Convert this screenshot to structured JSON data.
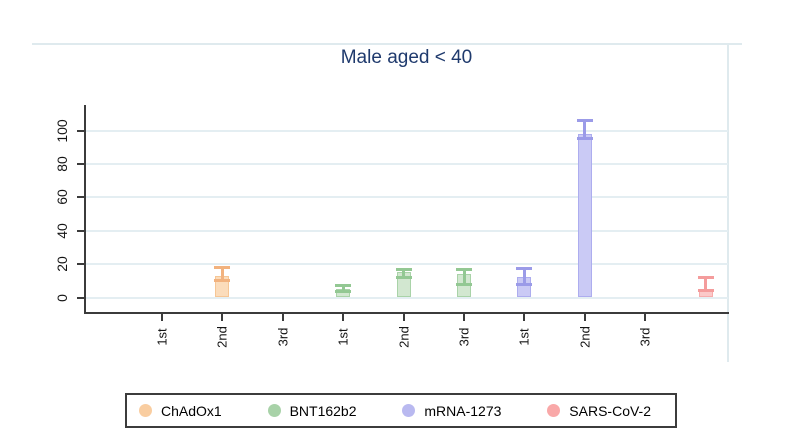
{
  "title": {
    "text": "Male aged < 40",
    "color": "#1f3a6d"
  },
  "panel": {
    "border_color": "#dfeaee",
    "axis_color": "#3b3b3b",
    "grid_color": "#e4eef2",
    "background": "#ffffff"
  },
  "chart_data": {
    "type": "bar",
    "title": "Male aged < 40",
    "xlabel": "",
    "ylabel": "",
    "ylim": [
      0,
      115
    ],
    "yticks": [
      0,
      20,
      40,
      60,
      80,
      100
    ],
    "grid": true,
    "legend_position": "bottom",
    "x_tick_labels": [
      "1st",
      "2nd",
      "3rd",
      "1st",
      "2nd",
      "3rd",
      "1st",
      "2nd",
      "3rd"
    ],
    "series": [
      {
        "name": "ChAdOx1",
        "color": "#F2B27E",
        "fill": "#FBDCBB",
        "edge": "#F6C695",
        "points": [
          {
            "dose": "1st",
            "value": null
          },
          {
            "dose": "2nd",
            "value": 13,
            "ci_low": 10,
            "ci_high": 18
          },
          {
            "dose": "3rd",
            "value": null
          }
        ]
      },
      {
        "name": "BNT162b2",
        "color": "#93C893",
        "fill": "#D2E7D0",
        "edge": "#A9D3A8",
        "points": [
          {
            "dose": "1st",
            "value": 5,
            "ci_low": 3.5,
            "ci_high": 7
          },
          {
            "dose": "2nd",
            "value": 15,
            "ci_low": 12,
            "ci_high": 16.5
          },
          {
            "dose": "3rd",
            "value": 14,
            "ci_low": 8,
            "ci_high": 17
          }
        ]
      },
      {
        "name": "mRNA-1273",
        "color": "#9B9BE8",
        "fill": "#CACAF5",
        "edge": "#ADADEF",
        "points": [
          {
            "dose": "1st",
            "value": 12,
            "ci_low": 7.5,
            "ci_high": 17.5
          },
          {
            "dose": "2nd",
            "value": 98,
            "ci_low": 95,
            "ci_high": 106
          },
          {
            "dose": "3rd",
            "value": null
          }
        ]
      },
      {
        "name": "SARS-CoV-2",
        "color": "#F49C9C",
        "fill": "#FBC9C9",
        "edge": "#F7ACAC",
        "points": [
          {
            "dose": "",
            "value": 5,
            "ci_low": 4,
            "ci_high": 12
          }
        ]
      }
    ],
    "legend": [
      {
        "label": "ChAdOx1",
        "color": "#F9CDA0"
      },
      {
        "label": "BNT162b2",
        "color": "#A8D2A8"
      },
      {
        "label": "mRNA-1273",
        "color": "#B9B9F0"
      },
      {
        "label": "SARS-CoV-2",
        "color": "#F9A8A8"
      }
    ]
  }
}
